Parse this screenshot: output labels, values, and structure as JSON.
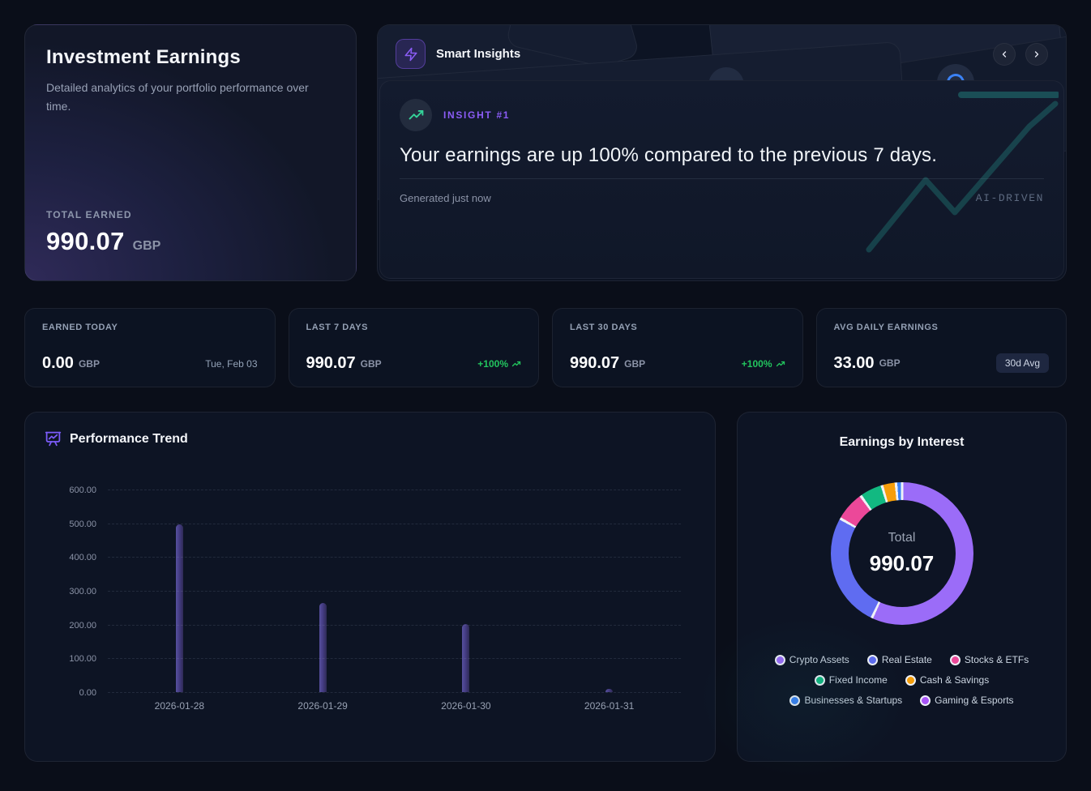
{
  "colors": {
    "accent_purple": "#8b5cf6",
    "positive_green": "#22c55e",
    "bar_indigo": "#453d85",
    "ai_teal": "#2dd4bf",
    "card_bg": "#0d1424"
  },
  "hero": {
    "title": "Investment Earnings",
    "subtitle": "Detailed analytics of your portfolio performance over time.",
    "total_label": "TOTAL EARNED",
    "total_value": "990.07",
    "currency": "GBP"
  },
  "insights": {
    "title": "Smart Insights",
    "insight_label": "INSIGHT #1",
    "headline": "Your earnings are up 100% compared to the previous 7 days.",
    "generated": "Generated just now",
    "ai_tag": "AI-DRIVEN"
  },
  "stats": [
    {
      "label": "EARNED TODAY",
      "value": "0.00",
      "currency": "GBP",
      "right": "Tue, Feb 03",
      "right_type": "date"
    },
    {
      "label": "LAST 7 DAYS",
      "value": "990.07",
      "currency": "GBP",
      "right": "+100%",
      "right_type": "delta"
    },
    {
      "label": "LAST 30 DAYS",
      "value": "990.07",
      "currency": "GBP",
      "right": "+100%",
      "right_type": "delta"
    },
    {
      "label": "AVG DAILY EARNINGS",
      "value": "33.00",
      "currency": "GBP",
      "right": "30d Avg",
      "right_type": "badge"
    }
  ],
  "chart_data": [
    {
      "type": "bar",
      "title": "Performance Trend",
      "x": [
        "2026-01-28",
        "2026-01-29",
        "2026-01-30",
        "2026-01-31"
      ],
      "values": [
        497,
        263,
        202,
        10
      ],
      "xlabel": "",
      "ylabel": "",
      "ylim": [
        0,
        600
      ],
      "yticks": [
        "600.00",
        "500.00",
        "400.00",
        "300.00",
        "200.00",
        "100.00",
        "0.00"
      ],
      "grid": "horizontal-dashed",
      "bar_color": "#453d85"
    },
    {
      "type": "pie",
      "title": "Earnings by Interest",
      "center_label": "Total",
      "center_value": "990.07",
      "legend_position": "bottom",
      "segments": [
        {
          "label": "Crypto Assets",
          "color": "#9b6cf8",
          "percent": 57.0
        },
        {
          "label": "Real Estate",
          "color": "#5f6cf1",
          "percent": 26.2
        },
        {
          "label": "Stocks & ETFs",
          "color": "#ec4899",
          "percent": 6.9
        },
        {
          "label": "Fixed Income",
          "color": "#12b981",
          "percent": 5.3
        },
        {
          "label": "Cash & Savings",
          "color": "#f59e0b",
          "percent": 3.2
        },
        {
          "label": "Businesses & Startups",
          "color": "#3b82f6",
          "percent": 1.4
        },
        {
          "label": "Gaming & Esports",
          "color": "#a855f7",
          "percent": 0.0
        }
      ]
    }
  ]
}
